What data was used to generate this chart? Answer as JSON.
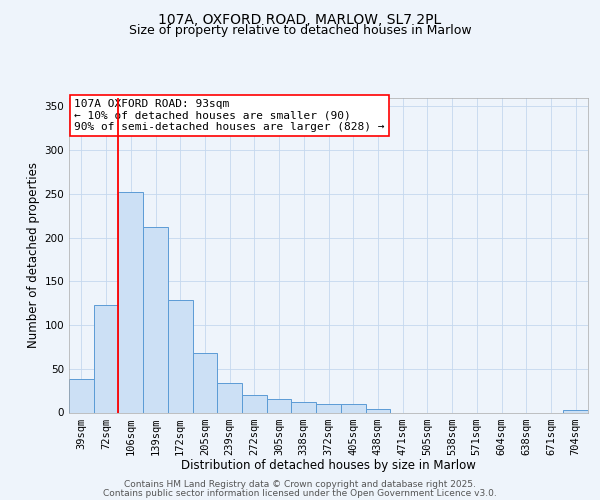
{
  "title": "107A, OXFORD ROAD, MARLOW, SL7 2PL",
  "subtitle": "Size of property relative to detached houses in Marlow",
  "xlabel": "Distribution of detached houses by size in Marlow",
  "ylabel": "Number of detached properties",
  "bar_labels": [
    "39sqm",
    "72sqm",
    "106sqm",
    "139sqm",
    "172sqm",
    "205sqm",
    "239sqm",
    "272sqm",
    "305sqm",
    "338sqm",
    "372sqm",
    "405sqm",
    "438sqm",
    "471sqm",
    "505sqm",
    "538sqm",
    "571sqm",
    "604sqm",
    "638sqm",
    "671sqm",
    "704sqm"
  ],
  "bar_values": [
    38,
    123,
    252,
    212,
    129,
    68,
    34,
    20,
    16,
    12,
    10,
    10,
    4,
    0,
    0,
    0,
    0,
    0,
    0,
    0,
    3
  ],
  "bar_color": "#cce0f5",
  "bar_edge_color": "#5b9bd5",
  "vline_color": "#ff0000",
  "vline_x": 1.5,
  "annotation_text_line1": "107A OXFORD ROAD: 93sqm",
  "annotation_text_line2": "← 10% of detached houses are smaller (90)",
  "annotation_text_line3": "90% of semi-detached houses are larger (828) →",
  "ylim": [
    0,
    360
  ],
  "yticks": [
    0,
    50,
    100,
    150,
    200,
    250,
    300,
    350
  ],
  "background_color": "#eef4fb",
  "footer_line1": "Contains HM Land Registry data © Crown copyright and database right 2025.",
  "footer_line2": "Contains public sector information licensed under the Open Government Licence v3.0.",
  "title_fontsize": 10,
  "subtitle_fontsize": 9,
  "axis_label_fontsize": 8.5,
  "tick_fontsize": 7.5,
  "annotation_fontsize": 8,
  "footer_fontsize": 6.5
}
